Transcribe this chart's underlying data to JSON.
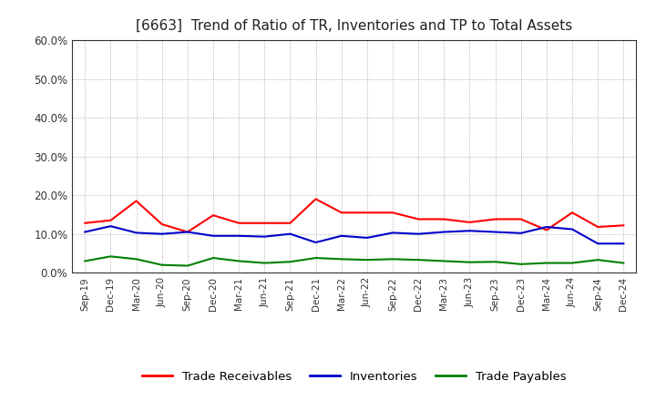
{
  "title": "[6663]  Trend of Ratio of TR, Inventories and TP to Total Assets",
  "x_labels": [
    "Sep-19",
    "Dec-19",
    "Mar-20",
    "Jun-20",
    "Sep-20",
    "Dec-20",
    "Mar-21",
    "Jun-21",
    "Sep-21",
    "Dec-21",
    "Mar-22",
    "Jun-22",
    "Sep-22",
    "Dec-22",
    "Mar-23",
    "Jun-23",
    "Sep-23",
    "Dec-23",
    "Mar-24",
    "Jun-24",
    "Sep-24",
    "Dec-24"
  ],
  "trade_receivables": [
    0.128,
    0.135,
    0.185,
    0.125,
    0.105,
    0.148,
    0.128,
    0.128,
    0.128,
    0.19,
    0.155,
    0.155,
    0.155,
    0.138,
    0.138,
    0.13,
    0.138,
    0.138,
    0.11,
    0.155,
    0.118,
    0.122
  ],
  "inventories": [
    0.105,
    0.12,
    0.103,
    0.1,
    0.105,
    0.095,
    0.095,
    0.093,
    0.1,
    0.078,
    0.095,
    0.09,
    0.103,
    0.1,
    0.105,
    0.108,
    0.105,
    0.102,
    0.118,
    0.112,
    0.075,
    0.075
  ],
  "trade_payables": [
    0.03,
    0.042,
    0.035,
    0.02,
    0.018,
    0.038,
    0.03,
    0.025,
    0.028,
    0.038,
    0.035,
    0.033,
    0.035,
    0.033,
    0.03,
    0.027,
    0.028,
    0.022,
    0.025,
    0.025,
    0.033,
    0.025
  ],
  "ylim": [
    0.0,
    0.6
  ],
  "yticks": [
    0.0,
    0.1,
    0.2,
    0.3,
    0.4,
    0.5,
    0.6
  ],
  "line_colors": {
    "trade_receivables": "#ff0000",
    "inventories": "#0000cc",
    "trade_payables": "#008000"
  },
  "legend_labels": [
    "Trade Receivables",
    "Inventories",
    "Trade Payables"
  ],
  "background_color": "#ffffff",
  "grid_color": "#999999"
}
